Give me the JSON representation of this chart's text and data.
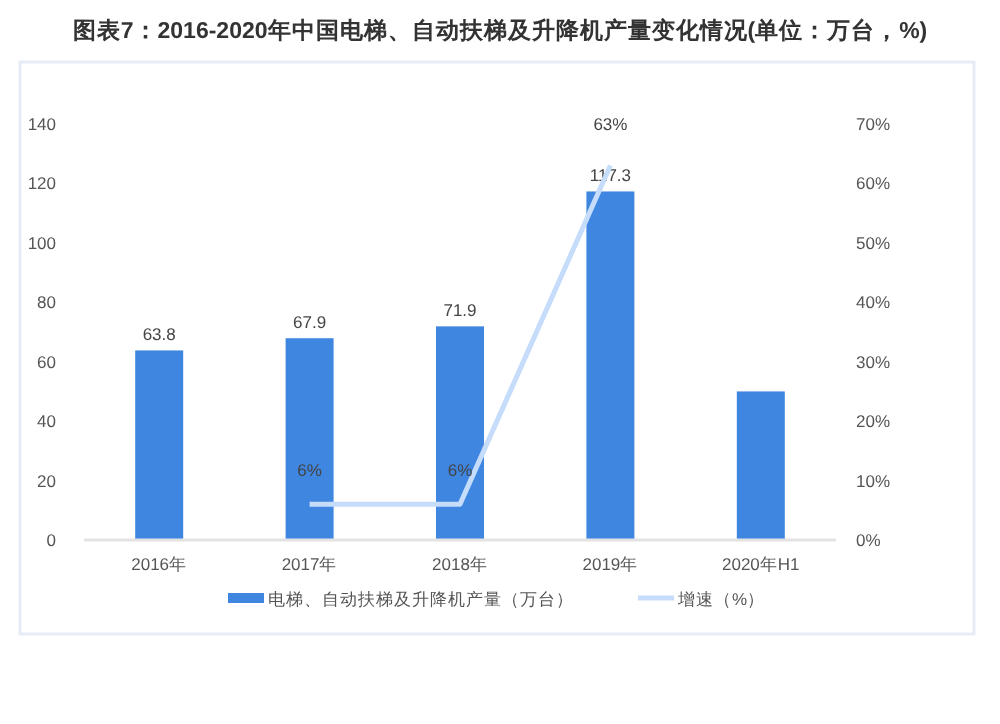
{
  "chart_data": {
    "type": "bar",
    "title": "图表7：2016-2020年中国电梯、自动扶梯及升降机产量变化情况(单位：万台，%)",
    "categories": [
      "2016年",
      "2017年",
      "2018年",
      "2019年",
      "2020年H1"
    ],
    "series": [
      {
        "name": "电梯、自动扶梯及升降机产量（万台）",
        "color": "#3f86e0",
        "values": [
          63.8,
          67.9,
          71.9,
          117.3,
          50
        ],
        "value_labels": [
          "63.8",
          "67.9",
          "71.9",
          "117.3",
          null
        ]
      },
      {
        "name": "增速（%）",
        "type": "line",
        "axis": "y2",
        "color": "#c5dcfb",
        "values": [
          null,
          6,
          6,
          63,
          null
        ],
        "value_labels": [
          null,
          "6%",
          "6%",
          "63%",
          null
        ]
      }
    ],
    "ylim": [
      0,
      140
    ],
    "yticks": [
      0,
      20,
      40,
      60,
      80,
      100,
      120,
      140
    ],
    "y2lim": [
      0,
      70
    ],
    "y2ticks": [
      {
        "value": 0,
        "label": "0%"
      },
      {
        "value": 10,
        "label": "10%"
      },
      {
        "value": 20,
        "label": "20%"
      },
      {
        "value": 30,
        "label": "30%"
      },
      {
        "value": 40,
        "label": "40%"
      },
      {
        "value": 50,
        "label": "50%"
      },
      {
        "value": 60,
        "label": "60%"
      },
      {
        "value": 70,
        "label": "70%"
      }
    ],
    "grid": false,
    "legend": "bottom",
    "marker": "none"
  }
}
